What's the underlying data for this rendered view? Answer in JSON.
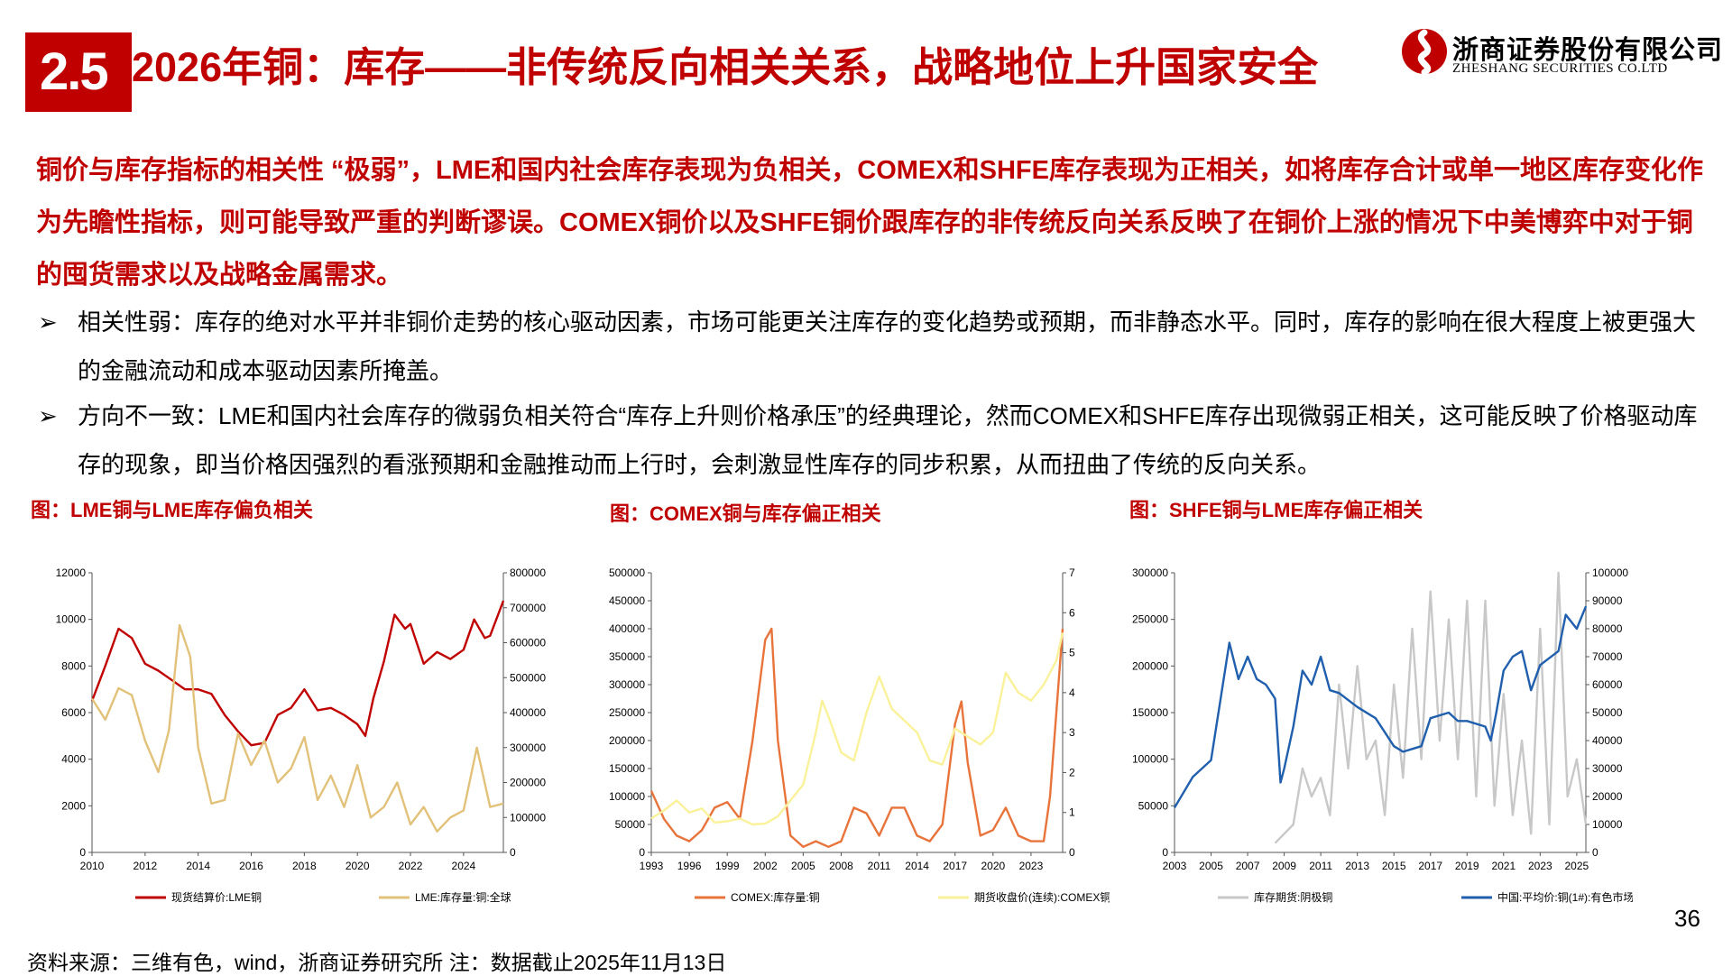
{
  "header": {
    "number": "2.5",
    "title": "2026年铜：库存——非传统反向相关关系，战略地位上升国家安全",
    "logo_cn": "浙商证券股份有限公司",
    "logo_en": "ZHESHANG SECURITIES CO.LTD"
  },
  "summary": "铜价与库存指标的相关性 “极弱”，LME和国内社会库存表现为负相关，COMEX和SHFE库存表现为正相关，如将库存合计或单一地区库存变化作为先瞻性指标，则可能导致严重的判断谬误。COMEX铜价以及SHFE铜价跟库存的非传统反向关系反映了在铜价上涨的情况下中美博弈中对于铜的囤货需求以及战略金属需求。",
  "bullets": [
    "相关性弱：库存的绝对水平并非铜价走势的核心驱动因素，市场可能更关注库存的变化趋势或预期，而非静态水平。同时，库存的影响在很大程度上被更强大的金融流动和成本驱动因素所掩盖。",
    "方向不一致：LME和国内社会库存的微弱负相关符合“库存上升则价格承压”的经典理论，然而COMEX和SHFE库存出现微弱正相关，这可能反映了价格驱动库存的现象，即当价格因强烈的看涨预期和金融推动而上行时，会刺激显性库存的同步积累，从而扭曲了传统的反向关系。"
  ],
  "bullet_marker": "➢",
  "source": "资料来源：三维有色，wind，浙商证券研究所 注：数据截止2025年11月13日",
  "page_number": "36",
  "colors": {
    "accent": "#c00000",
    "dark_red": "#c00000",
    "tan": "#e2c27a",
    "orange": "#e8743b",
    "pale_yellow": "#faf29a",
    "gray": "#c8c8c8",
    "blue": "#1f5fad"
  },
  "chart_data": [
    {
      "type": "line",
      "title": "图：LME铜与LME库存偏负相关",
      "x_ticks": [
        "2010",
        "2012",
        "2014",
        "2016",
        "2018",
        "2020",
        "2022",
        "2024"
      ],
      "x_range": [
        2010,
        2025.5
      ],
      "y_left_ticks": [
        "0",
        "2000",
        "4000",
        "6000",
        "8000",
        "10000",
        "12000"
      ],
      "y_left_range": [
        0,
        12000
      ],
      "y_right_ticks": [
        "0",
        "100000",
        "200000",
        "300000",
        "400000",
        "500000",
        "600000",
        "700000",
        "800000"
      ],
      "y_right_range": [
        0,
        800000
      ],
      "series": [
        {
          "name": "现货结算价:LME铜",
          "axis": "left",
          "color": "#c00000",
          "x": [
            2010,
            2010.5,
            2011,
            2011.5,
            2012,
            2012.5,
            2013,
            2013.5,
            2014,
            2014.5,
            2015,
            2015.5,
            2016,
            2016.5,
            2017,
            2017.5,
            2018,
            2018.5,
            2019,
            2019.5,
            2020,
            2020.3,
            2020.6,
            2021,
            2021.4,
            2021.8,
            2022,
            2022.5,
            2023,
            2023.5,
            2024,
            2024.4,
            2024.8,
            2025,
            2025.5
          ],
          "y": [
            6500,
            8000,
            9600,
            9200,
            8100,
            7800,
            7400,
            7000,
            7000,
            6800,
            5900,
            5200,
            4600,
            4700,
            5900,
            6200,
            7000,
            6100,
            6200,
            5900,
            5500,
            5000,
            6600,
            8200,
            10200,
            9600,
            9800,
            8100,
            8600,
            8300,
            8700,
            10000,
            9200,
            9300,
            10800
          ]
        },
        {
          "name": "LME:库存量:铜:全球",
          "axis": "right",
          "color": "#e2c27a",
          "x": [
            2010,
            2010.5,
            2011,
            2011.5,
            2012,
            2012.5,
            2012.9,
            2013.3,
            2013.7,
            2014,
            2014.5,
            2015,
            2015.5,
            2016,
            2016.5,
            2017,
            2017.5,
            2018,
            2018.5,
            2019,
            2019.5,
            2020,
            2020.5,
            2021,
            2021.5,
            2022,
            2022.5,
            2023,
            2023.5,
            2024,
            2024.5,
            2025,
            2025.5
          ],
          "y": [
            440000,
            380000,
            470000,
            450000,
            320000,
            230000,
            350000,
            650000,
            560000,
            300000,
            140000,
            150000,
            340000,
            250000,
            320000,
            200000,
            240000,
            330000,
            150000,
            220000,
            130000,
            250000,
            100000,
            130000,
            200000,
            80000,
            130000,
            60000,
            100000,
            120000,
            300000,
            130000,
            140000
          ]
        }
      ]
    },
    {
      "type": "line",
      "title": "图：COMEX铜与库存偏正相关",
      "x_ticks": [
        "1993",
        "1996",
        "1999",
        "2002",
        "2005",
        "2008",
        "2011",
        "2014",
        "2017",
        "2020",
        "2023"
      ],
      "x_range": [
        1993,
        2025.5
      ],
      "y_left_ticks": [
        "0",
        "50000",
        "100000",
        "150000",
        "200000",
        "250000",
        "300000",
        "350000",
        "400000",
        "450000",
        "500000"
      ],
      "y_left_range": [
        0,
        500000
      ],
      "y_right_ticks": [
        "0",
        "1",
        "2",
        "3",
        "4",
        "5",
        "6",
        "7"
      ],
      "y_right_range": [
        0,
        7
      ],
      "series": [
        {
          "name": "COMEX:库存量:铜",
          "axis": "left",
          "color": "#e8743b",
          "x": [
            1993,
            1994,
            1995,
            1996,
            1997,
            1998,
            1999,
            2000,
            2001,
            2002,
            2002.5,
            2003,
            2004,
            2005,
            2006,
            2007,
            2008,
            2009,
            2010,
            2011,
            2012,
            2013,
            2014,
            2015,
            2016,
            2017,
            2017.5,
            2018,
            2019,
            2020,
            2021,
            2022,
            2023,
            2024,
            2024.5,
            2025,
            2025.5
          ],
          "y": [
            110000,
            60000,
            30000,
            20000,
            40000,
            80000,
            90000,
            60000,
            200000,
            380000,
            400000,
            200000,
            30000,
            10000,
            20000,
            10000,
            20000,
            80000,
            70000,
            30000,
            80000,
            80000,
            30000,
            20000,
            50000,
            230000,
            270000,
            160000,
            30000,
            40000,
            80000,
            30000,
            20000,
            20000,
            100000,
            250000,
            400000
          ]
        },
        {
          "name": "期货收盘价(连续):COMEX铜",
          "axis": "right",
          "color": "#faf29a",
          "x": [
            1993,
            1994,
            1995,
            1996,
            1997,
            1998,
            1999,
            2000,
            2001,
            2002,
            2003,
            2004,
            2005,
            2006,
            2006.5,
            2007,
            2008,
            2009,
            2010,
            2011,
            2012,
            2013,
            2014,
            2015,
            2016,
            2017,
            2018,
            2019,
            2020,
            2021,
            2022,
            2023,
            2024,
            2025,
            2025.5
          ],
          "y": [
            0.85,
            1.05,
            1.3,
            1.0,
            1.1,
            0.75,
            0.78,
            0.85,
            0.7,
            0.72,
            0.9,
            1.3,
            1.7,
            3.0,
            3.8,
            3.4,
            2.5,
            2.3,
            3.5,
            4.4,
            3.6,
            3.3,
            3.0,
            2.3,
            2.2,
            3.1,
            2.9,
            2.7,
            3.0,
            4.5,
            4.0,
            3.8,
            4.2,
            4.8,
            5.5
          ]
        }
      ]
    },
    {
      "type": "line",
      "title": "图：SHFE铜与LME库存偏正相关",
      "x_ticks": [
        "2003",
        "2005",
        "2007",
        "2009",
        "2011",
        "2013",
        "2015",
        "2017",
        "2019",
        "2021",
        "2023",
        "2025"
      ],
      "x_range": [
        2003,
        2025.5
      ],
      "y_left_ticks": [
        "0",
        "50000",
        "100000",
        "150000",
        "200000",
        "250000",
        "300000"
      ],
      "y_left_range": [
        0,
        300000
      ],
      "y_right_ticks": [
        "0",
        "10000",
        "20000",
        "30000",
        "40000",
        "50000",
        "60000",
        "70000",
        "80000",
        "90000",
        "100000"
      ],
      "y_right_range": [
        0,
        100000
      ],
      "series": [
        {
          "name": "库存期货:阴极铜",
          "axis": "left",
          "color": "#c8c8c8",
          "x": [
            2008.5,
            2009,
            2009.5,
            2010,
            2010.5,
            2011,
            2011.5,
            2012,
            2012.5,
            2013,
            2013.5,
            2014,
            2014.5,
            2015,
            2015.5,
            2016,
            2016.5,
            2017,
            2017.5,
            2018,
            2018.5,
            2019,
            2019.5,
            2020,
            2020.5,
            2021,
            2021.5,
            2022,
            2022.5,
            2023,
            2023.5,
            2024,
            2024.5,
            2025,
            2025.5
          ],
          "y": [
            10000,
            20000,
            30000,
            90000,
            60000,
            80000,
            40000,
            180000,
            90000,
            200000,
            100000,
            120000,
            40000,
            180000,
            80000,
            240000,
            100000,
            280000,
            120000,
            250000,
            100000,
            270000,
            60000,
            270000,
            50000,
            170000,
            40000,
            120000,
            20000,
            240000,
            30000,
            300000,
            60000,
            100000,
            30000
          ]
        },
        {
          "name": "中国:平均价:铜(1#):有色市场",
          "axis": "right",
          "color": "#1f5fad",
          "x": [
            2003,
            2004,
            2005,
            2006,
            2006.5,
            2007,
            2007.5,
            2008,
            2008.5,
            2008.8,
            2009,
            2009.5,
            2010,
            2010.5,
            2011,
            2011.5,
            2012,
            2013,
            2014,
            2015,
            2015.5,
            2016,
            2016.5,
            2017,
            2018,
            2018.5,
            2019,
            2020,
            2020.3,
            2020.6,
            2021,
            2021.5,
            2022,
            2022.5,
            2023,
            2024,
            2024.4,
            2025,
            2025.5
          ],
          "y": [
            16000,
            27000,
            33000,
            75000,
            62000,
            70000,
            62000,
            60000,
            55000,
            25000,
            30000,
            45000,
            65000,
            60000,
            70000,
            58000,
            57000,
            52000,
            48000,
            38000,
            36000,
            37000,
            38000,
            48000,
            50000,
            47000,
            47000,
            45000,
            40000,
            50000,
            65000,
            70000,
            72000,
            58000,
            67000,
            72000,
            85000,
            80000,
            88000
          ]
        }
      ]
    }
  ]
}
